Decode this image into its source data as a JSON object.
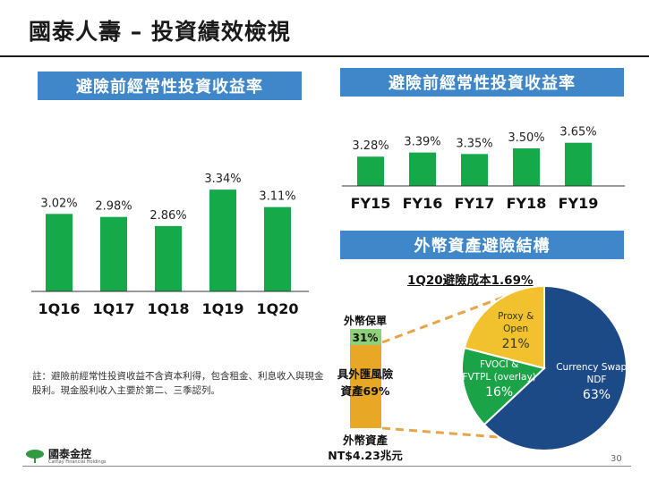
{
  "title": "國泰人壽 – 投資績效檢視",
  "left_panel": {
    "banner": "避險前經常性投資收益率"
  },
  "right_panel": {
    "banner": "避險前經常性投資收益率"
  },
  "hedge_panel": {
    "banner": "外幣資產避險結構",
    "subtitle": "1Q20避險成本1.69%",
    "stack_labels": {
      "top_name": "外幣保單",
      "top_value": "31%",
      "mid_name": "具外匯風險",
      "mid_value": "資產69%",
      "bottom_name": "外幣資產",
      "bottom_value": "NT$4.23兆元"
    }
  },
  "note": "註：避險前經常性投資收益不含資本利得，包含租金、利息收入與現金股利。現金股利收入主要於第二、三季認列。",
  "logo": {
    "cn": "國泰金控",
    "en": "Cathay Financial Holdings"
  },
  "page_number": "30",
  "colors": {
    "bar": "#16a94a",
    "banner": "#3f87c8",
    "navy": "#1c4a86",
    "gold": "#f2c12e",
    "green": "#1aa447",
    "stack_gold": "#e8a825",
    "stack_green": "#8fcf7a",
    "dash": "#e8a44a"
  },
  "chart_data": [
    {
      "type": "bar",
      "categories": [
        "1Q16",
        "1Q17",
        "1Q18",
        "1Q19",
        "1Q20"
      ],
      "values": [
        3.02,
        2.98,
        2.86,
        3.34,
        3.11
      ],
      "labels": [
        "3.02%",
        "2.98%",
        "2.86%",
        "3.34%",
        "3.11%"
      ]
    },
    {
      "type": "bar",
      "categories": [
        "FY15",
        "FY16",
        "FY17",
        "FY18",
        "FY19"
      ],
      "values": [
        3.28,
        3.39,
        3.35,
        3.5,
        3.65
      ],
      "labels": [
        "3.28%",
        "3.39%",
        "3.35%",
        "3.50%",
        "3.65%"
      ]
    },
    {
      "type": "pie",
      "slices": [
        {
          "name": "Currency Swap & NDF",
          "value": 63,
          "label": "63%"
        },
        {
          "name": "FVOCI & FVTPL (overlay)",
          "value": 16,
          "label": "16%"
        },
        {
          "name": "Proxy & Open",
          "value": 21,
          "label": "21%"
        }
      ]
    }
  ]
}
